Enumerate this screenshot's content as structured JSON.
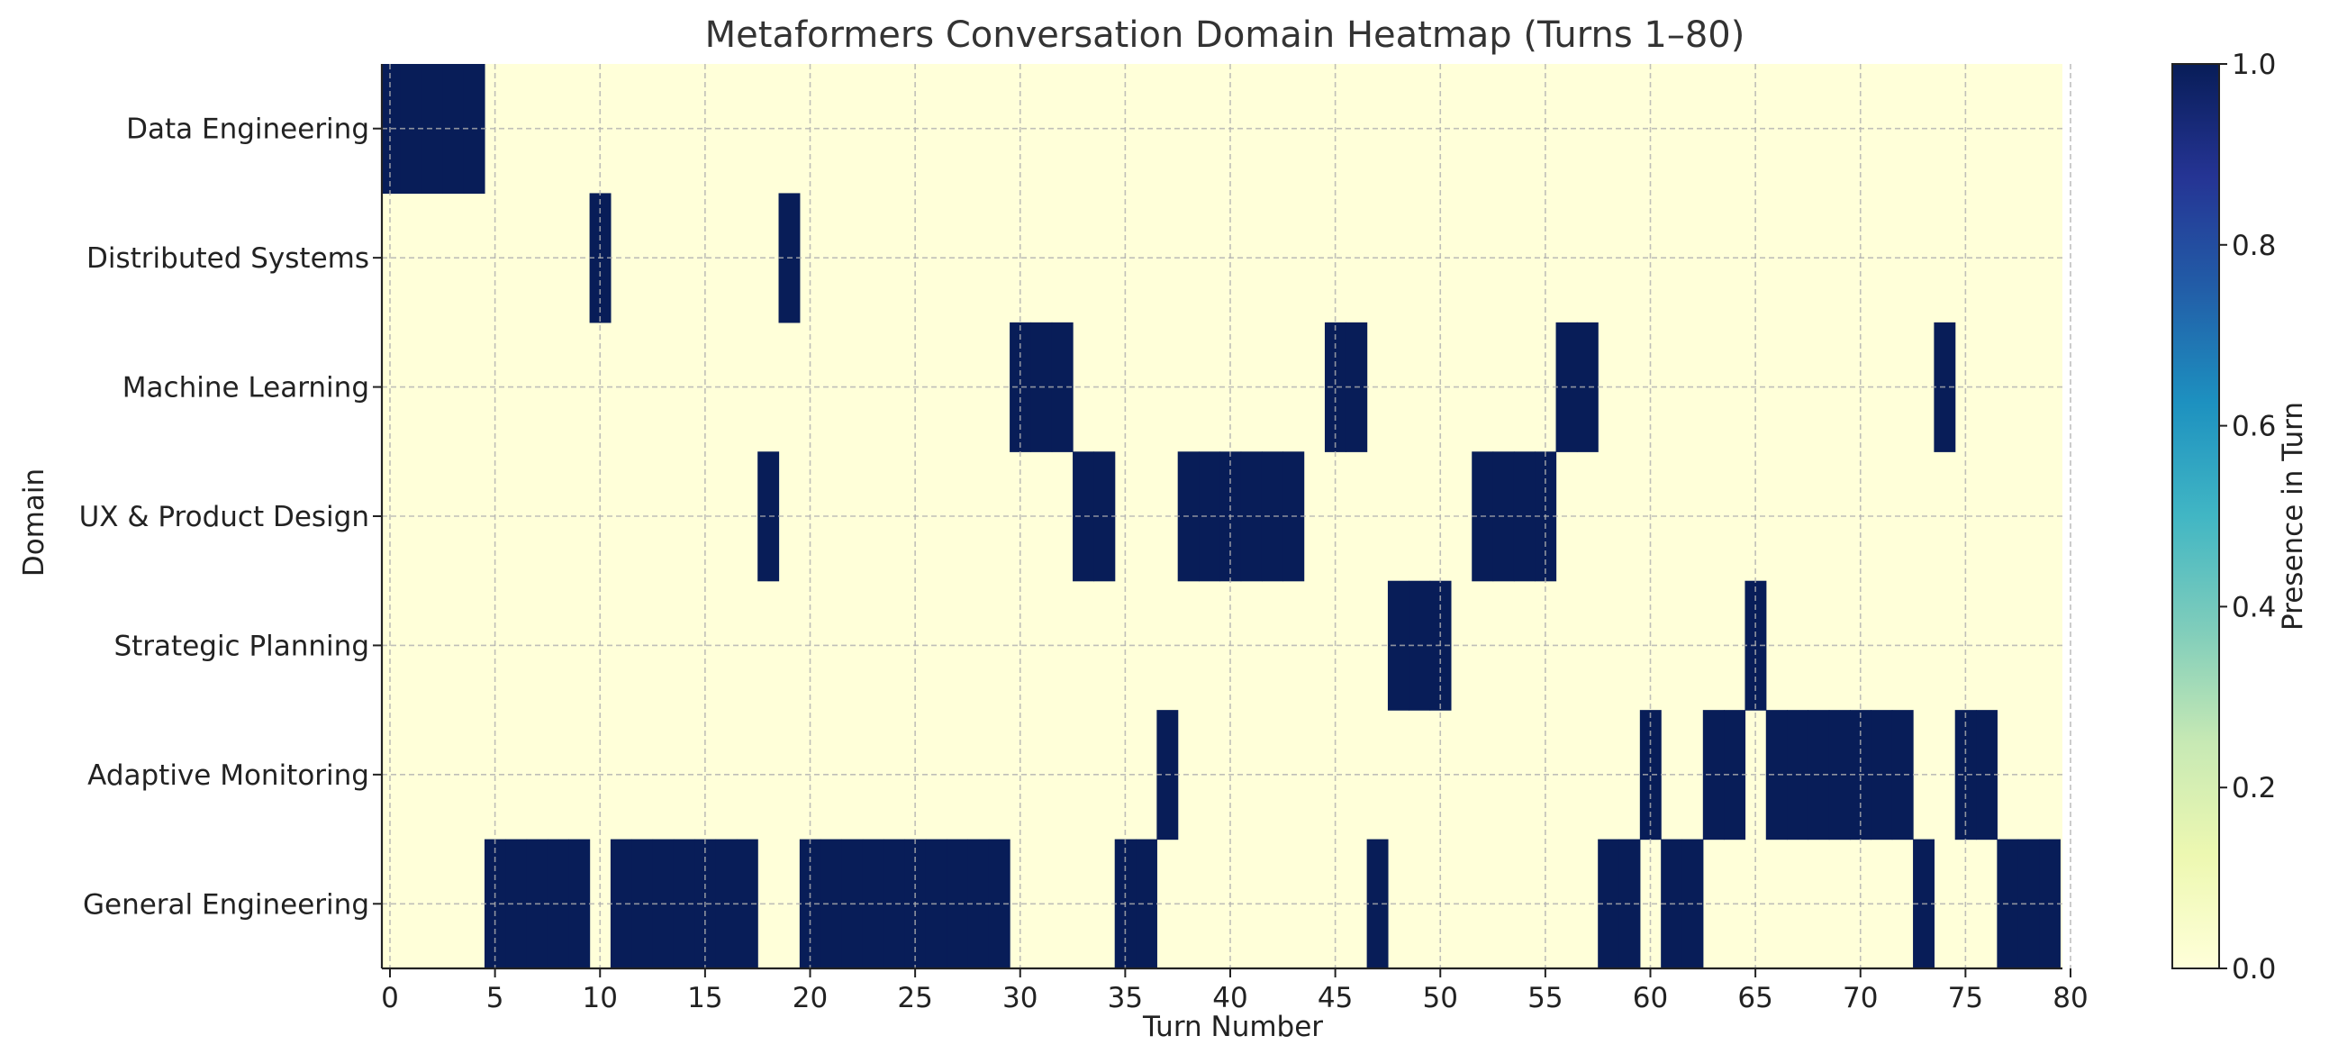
{
  "chart_data": {
    "type": "heatmap",
    "title": "Metaformers Conversation Domain Heatmap (Turns 1–80)",
    "xlabel": "Turn Number",
    "ylabel": "Domain",
    "xlim": [
      0,
      80
    ],
    "xticks": [
      0,
      5,
      10,
      15,
      20,
      25,
      30,
      35,
      40,
      45,
      50,
      55,
      60,
      65,
      70,
      75,
      80
    ],
    "grid": true,
    "colorbar": {
      "label": "Presence in Turn",
      "range": [
        0,
        1
      ],
      "ticks": [
        "0.0",
        "0.2",
        "0.4",
        "0.6",
        "0.8",
        "1.0"
      ],
      "colors": [
        "#ffffd9",
        "#edf8b1",
        "#c7e9b4",
        "#7fcdbb",
        "#41b6c4",
        "#1d91c0",
        "#225ea8",
        "#253494",
        "#081d58"
      ]
    },
    "low_color": "#ffffd9",
    "high_color": "#081d58",
    "domains": [
      "Data Engineering",
      "Distributed Systems",
      "Machine Learning",
      "UX & Product Design",
      "Strategic Planning",
      "Adaptive Monitoring",
      "General Engineering"
    ],
    "active_turns": {
      "Data Engineering": [
        1,
        2,
        3,
        4,
        5
      ],
      "Distributed Systems": [
        11,
        20
      ],
      "Machine Learning": [
        31,
        32,
        33,
        46,
        47,
        57,
        58,
        75
      ],
      "UX & Product Design": [
        19,
        34,
        35,
        39,
        40,
        41,
        42,
        43,
        44,
        53,
        54,
        55,
        56
      ],
      "Strategic Planning": [
        49,
        50,
        51,
        66
      ],
      "Adaptive Monitoring": [
        38,
        61,
        64,
        65,
        67,
        68,
        69,
        70,
        71,
        72,
        73,
        76,
        77
      ],
      "General Engineering": [
        6,
        7,
        8,
        9,
        10,
        12,
        13,
        14,
        15,
        16,
        17,
        18,
        21,
        22,
        23,
        24,
        25,
        26,
        27,
        28,
        29,
        30,
        36,
        37,
        48,
        59,
        60,
        62,
        63,
        74,
        78,
        79,
        80
      ]
    }
  }
}
